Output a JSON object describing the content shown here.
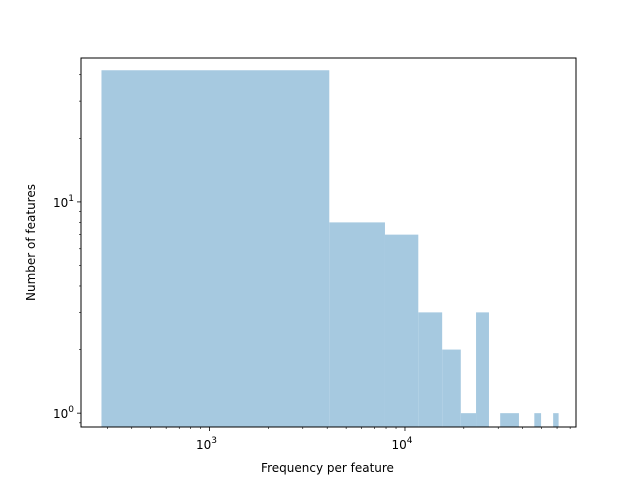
{
  "chart_data": {
    "type": "bar",
    "title": "",
    "xlabel": "Frequency per feature",
    "ylabel": "Number of features",
    "xscale": "log",
    "yscale": "log",
    "xlim": [
      220,
      75000
    ],
    "ylim": [
      0.86,
      48
    ],
    "grid": false,
    "bar_color": "#a6c9e0",
    "x_major_ticks": [
      {
        "value": 1000,
        "base": "10",
        "exp": "3"
      },
      {
        "value": 10000,
        "base": "10",
        "exp": "4"
      }
    ],
    "y_major_ticks": [
      {
        "value": 1,
        "base": "10",
        "exp": "0"
      },
      {
        "value": 10,
        "base": "10",
        "exp": "1"
      }
    ],
    "bins": [
      {
        "x0": 280,
        "x1": 4100,
        "count": 42
      },
      {
        "x0": 4100,
        "x1": 7900,
        "count": 8
      },
      {
        "x0": 7900,
        "x1": 11700,
        "count": 7
      },
      {
        "x0": 11700,
        "x1": 15500,
        "count": 3
      },
      {
        "x0": 15500,
        "x1": 19300,
        "count": 2
      },
      {
        "x0": 19300,
        "x1": 23100,
        "count": 1
      },
      {
        "x0": 23100,
        "x1": 26900,
        "count": 3
      },
      {
        "x0": 30700,
        "x1": 38300,
        "count": 1
      },
      {
        "x0": 45900,
        "x1": 49700,
        "count": 1
      },
      {
        "x0": 57300,
        "x1": 61100,
        "count": 1
      }
    ]
  }
}
